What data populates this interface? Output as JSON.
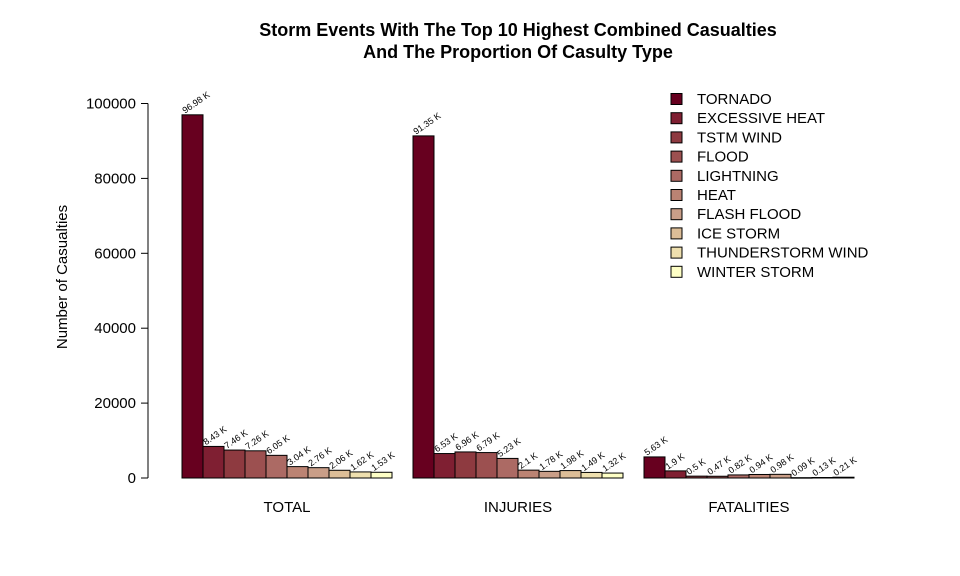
{
  "chart_data": {
    "type": "bar",
    "title_line1": "Storm Events With The Top 10 Highest Combined Casualties",
    "title_line2": "And The Proportion Of Casulty Type",
    "ylabel": "Number of Casualties",
    "xlabel": "",
    "ylim": [
      0,
      100000
    ],
    "yticks": [
      0,
      20000,
      40000,
      60000,
      80000,
      100000
    ],
    "ytick_labels": [
      "0",
      "20000",
      "40000",
      "60000",
      "80000",
      "100000"
    ],
    "categories": [
      "TOTAL",
      "INJURIES",
      "FATALITIES"
    ],
    "legend_position": "top-right",
    "series": [
      {
        "name": "TORNADO",
        "color": "#67001F",
        "values": [
          96980,
          91350,
          5630
        ],
        "labels": [
          "96.98 K",
          "91.35 K",
          "5.63 K"
        ]
      },
      {
        "name": "EXCESSIVE HEAT",
        "color": "#7F1F32",
        "values": [
          8430,
          6530,
          1900
        ],
        "labels": [
          "8.43 K",
          "6.53 K",
          "1.9 K"
        ]
      },
      {
        "name": "TSTM WIND",
        "color": "#8E3A40",
        "values": [
          7460,
          6960,
          500
        ],
        "labels": [
          "7.46 K",
          "6.96 K",
          "0.5 K"
        ]
      },
      {
        "name": "FLOOD",
        "color": "#9C5050",
        "values": [
          7260,
          6790,
          470
        ],
        "labels": [
          "7.26 K",
          "6.79 K",
          "0.47 K"
        ]
      },
      {
        "name": "LIGHTNING",
        "color": "#AC6A64",
        "values": [
          6050,
          5230,
          820
        ],
        "labels": [
          "6.05 K",
          "5.23 K",
          "0.82 K"
        ]
      },
      {
        "name": "HEAT",
        "color": "#BB8373",
        "values": [
          3040,
          2100,
          940
        ],
        "labels": [
          "3.04 K",
          "2.1 K",
          "0.94 K"
        ]
      },
      {
        "name": "FLASH FLOOD",
        "color": "#C99E88",
        "values": [
          2760,
          1780,
          980
        ],
        "labels": [
          "2.76 K",
          "1.78 K",
          "0.98 K"
        ]
      },
      {
        "name": "ICE STORM",
        "color": "#DCBD97",
        "values": [
          2060,
          1980,
          90
        ],
        "labels": [
          "2.06 K",
          "1.98 K",
          "0.09 K"
        ]
      },
      {
        "name": "THUNDERSTORM WIND",
        "color": "#EEDFAE",
        "values": [
          1620,
          1490,
          130
        ],
        "labels": [
          "1.62 K",
          "1.49 K",
          "0.13 K"
        ]
      },
      {
        "name": "WINTER STORM",
        "color": "#FEFFC6",
        "values": [
          1530,
          1320,
          210
        ],
        "labels": [
          "1.53 K",
          "1.32 K",
          "0.21 K"
        ]
      }
    ]
  }
}
